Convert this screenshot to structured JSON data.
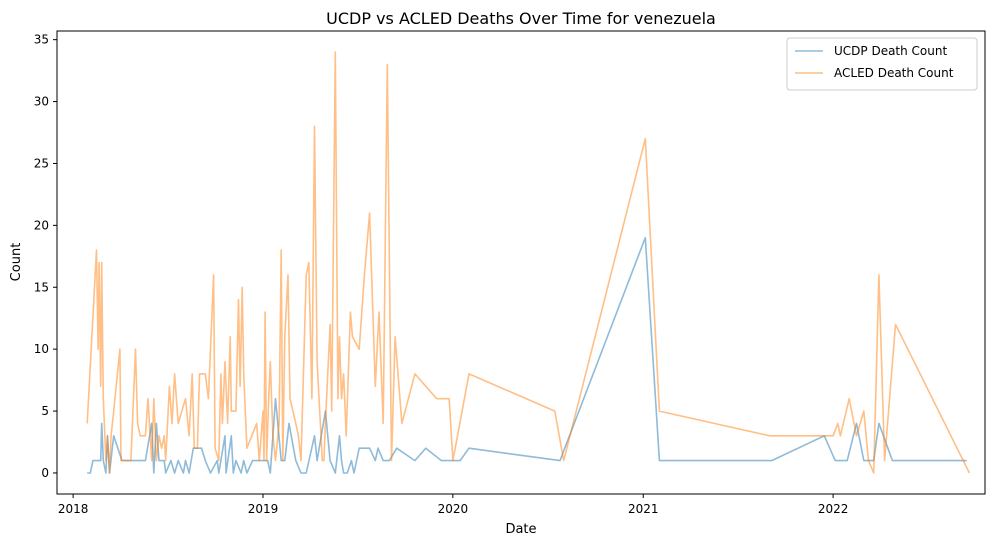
{
  "chart_data": {
    "type": "line",
    "title": "UCDP vs ACLED Deaths Over Time for venezuela",
    "xlabel": "Date",
    "ylabel": "Count",
    "xlim": [
      "2017-12-01",
      "2022-10-20"
    ],
    "ylim": [
      -1.7,
      35.7
    ],
    "x_ticks": [
      {
        "date": "2018-01-01",
        "label": "2018"
      },
      {
        "date": "2019-01-01",
        "label": "2019"
      },
      {
        "date": "2020-01-01",
        "label": "2020"
      },
      {
        "date": "2021-01-01",
        "label": "2021"
      },
      {
        "date": "2022-01-01",
        "label": "2022"
      }
    ],
    "y_ticks": [
      0,
      5,
      10,
      15,
      20,
      25,
      30,
      35
    ],
    "grid": false,
    "legend_position": "top-right",
    "series": [
      {
        "name": "UCDP Death Count",
        "color": "#1f77b4",
        "opacity": 0.5,
        "points": [
          [
            "2018-01-28",
            0
          ],
          [
            "2018-02-03",
            0
          ],
          [
            "2018-02-08",
            1
          ],
          [
            "2018-02-23",
            1
          ],
          [
            "2018-02-25",
            4
          ],
          [
            "2018-02-28",
            1
          ],
          [
            "2018-03-05",
            0
          ],
          [
            "2018-03-08",
            3
          ],
          [
            "2018-03-12",
            0
          ],
          [
            "2018-03-20",
            3
          ],
          [
            "2018-04-05",
            1
          ],
          [
            "2018-05-20",
            1
          ],
          [
            "2018-06-01",
            4
          ],
          [
            "2018-06-05",
            0
          ],
          [
            "2018-06-10",
            4
          ],
          [
            "2018-06-15",
            1
          ],
          [
            "2018-06-25",
            1
          ],
          [
            "2018-06-28",
            0
          ],
          [
            "2018-07-08",
            1
          ],
          [
            "2018-07-15",
            0
          ],
          [
            "2018-07-22",
            1
          ],
          [
            "2018-08-01",
            0
          ],
          [
            "2018-08-05",
            1
          ],
          [
            "2018-08-12",
            0
          ],
          [
            "2018-08-20",
            2
          ],
          [
            "2018-09-05",
            2
          ],
          [
            "2018-09-12",
            1
          ],
          [
            "2018-09-22",
            0
          ],
          [
            "2018-10-05",
            1
          ],
          [
            "2018-10-08",
            0
          ],
          [
            "2018-10-20",
            3
          ],
          [
            "2018-10-22",
            0
          ],
          [
            "2018-11-01",
            3
          ],
          [
            "2018-11-05",
            0
          ],
          [
            "2018-11-10",
            1
          ],
          [
            "2018-11-20",
            0
          ],
          [
            "2018-11-25",
            1
          ],
          [
            "2018-12-01",
            0
          ],
          [
            "2018-12-12",
            1
          ],
          [
            "2019-01-10",
            1
          ],
          [
            "2019-01-15",
            0
          ],
          [
            "2019-01-25",
            6
          ],
          [
            "2019-02-05",
            1
          ],
          [
            "2019-02-12",
            1
          ],
          [
            "2019-02-20",
            4
          ],
          [
            "2019-03-05",
            1
          ],
          [
            "2019-03-15",
            0
          ],
          [
            "2019-03-25",
            0
          ],
          [
            "2019-04-10",
            3
          ],
          [
            "2019-04-15",
            1
          ],
          [
            "2019-05-01",
            5
          ],
          [
            "2019-05-10",
            1
          ],
          [
            "2019-05-20",
            0
          ],
          [
            "2019-05-28",
            3
          ],
          [
            "2019-06-01",
            1
          ],
          [
            "2019-06-05",
            0
          ],
          [
            "2019-06-12",
            0
          ],
          [
            "2019-06-20",
            1
          ],
          [
            "2019-06-25",
            0
          ],
          [
            "2019-07-05",
            2
          ],
          [
            "2019-07-25",
            2
          ],
          [
            "2019-08-05",
            1
          ],
          [
            "2019-08-10",
            2
          ],
          [
            "2019-08-20",
            1
          ],
          [
            "2019-09-01",
            1
          ],
          [
            "2019-09-15",
            2
          ],
          [
            "2019-10-20",
            1
          ],
          [
            "2019-11-10",
            2
          ],
          [
            "2019-12-10",
            1
          ],
          [
            "2020-01-01",
            1
          ],
          [
            "2020-01-15",
            1
          ],
          [
            "2020-02-01",
            2
          ],
          [
            "2020-07-25",
            1
          ],
          [
            "2021-01-05",
            19
          ],
          [
            "2021-02-01",
            1
          ],
          [
            "2021-09-05",
            1
          ],
          [
            "2021-12-15",
            3
          ],
          [
            "2022-01-05",
            1
          ],
          [
            "2022-01-28",
            1
          ],
          [
            "2022-02-15",
            4
          ],
          [
            "2022-03-01",
            1
          ],
          [
            "2022-03-20",
            1
          ],
          [
            "2022-03-30",
            4
          ],
          [
            "2022-04-25",
            1
          ],
          [
            "2022-09-15",
            1
          ]
        ]
      },
      {
        "name": "ACLED Death Count",
        "color": "#ff7f0e",
        "opacity": 0.5,
        "points": [
          [
            "2018-01-28",
            4
          ],
          [
            "2018-02-15",
            18
          ],
          [
            "2018-02-18",
            10
          ],
          [
            "2018-02-20",
            17
          ],
          [
            "2018-02-23",
            7
          ],
          [
            "2018-02-25",
            17
          ],
          [
            "2018-02-28",
            6
          ],
          [
            "2018-03-05",
            1
          ],
          [
            "2018-03-08",
            3
          ],
          [
            "2018-03-12",
            0
          ],
          [
            "2018-03-15",
            3
          ],
          [
            "2018-03-20",
            5
          ],
          [
            "2018-04-01",
            10
          ],
          [
            "2018-04-03",
            1
          ],
          [
            "2018-04-15",
            1
          ],
          [
            "2018-04-22",
            1
          ],
          [
            "2018-05-01",
            10
          ],
          [
            "2018-05-05",
            4
          ],
          [
            "2018-05-10",
            3
          ],
          [
            "2018-05-20",
            3
          ],
          [
            "2018-05-25",
            6
          ],
          [
            "2018-06-01",
            1
          ],
          [
            "2018-06-05",
            6
          ],
          [
            "2018-06-10",
            1
          ],
          [
            "2018-06-15",
            3
          ],
          [
            "2018-06-20",
            2
          ],
          [
            "2018-06-25",
            3
          ],
          [
            "2018-06-28",
            1
          ],
          [
            "2018-07-05",
            7
          ],
          [
            "2018-07-10",
            4
          ],
          [
            "2018-07-15",
            8
          ],
          [
            "2018-07-22",
            4
          ],
          [
            "2018-08-05",
            6
          ],
          [
            "2018-08-12",
            3
          ],
          [
            "2018-08-18",
            8
          ],
          [
            "2018-08-22",
            2
          ],
          [
            "2018-08-28",
            2
          ],
          [
            "2018-09-01",
            8
          ],
          [
            "2018-09-12",
            8
          ],
          [
            "2018-09-18",
            6
          ],
          [
            "2018-09-28",
            16
          ],
          [
            "2018-10-01",
            2
          ],
          [
            "2018-10-08",
            1
          ],
          [
            "2018-10-12",
            8
          ],
          [
            "2018-10-15",
            4
          ],
          [
            "2018-10-20",
            9
          ],
          [
            "2018-10-25",
            4
          ],
          [
            "2018-10-30",
            11
          ],
          [
            "2018-11-01",
            5
          ],
          [
            "2018-11-10",
            5
          ],
          [
            "2018-11-15",
            14
          ],
          [
            "2018-11-18",
            7
          ],
          [
            "2018-11-22",
            15
          ],
          [
            "2018-11-25",
            8
          ],
          [
            "2018-12-01",
            2
          ],
          [
            "2018-12-20",
            4
          ],
          [
            "2018-12-25",
            1
          ],
          [
            "2019-01-01",
            5
          ],
          [
            "2019-01-03",
            1
          ],
          [
            "2019-01-05",
            13
          ],
          [
            "2019-01-08",
            1
          ],
          [
            "2019-01-12",
            6
          ],
          [
            "2019-01-15",
            9
          ],
          [
            "2019-01-20",
            3
          ],
          [
            "2019-01-25",
            1
          ],
          [
            "2019-02-01",
            4
          ],
          [
            "2019-02-05",
            18
          ],
          [
            "2019-02-08",
            1
          ],
          [
            "2019-02-12",
            11
          ],
          [
            "2019-02-18",
            16
          ],
          [
            "2019-02-22",
            6
          ],
          [
            "2019-03-05",
            4
          ],
          [
            "2019-03-10",
            3
          ],
          [
            "2019-03-15",
            1
          ],
          [
            "2019-03-25",
            16
          ],
          [
            "2019-03-30",
            17
          ],
          [
            "2019-04-05",
            6
          ],
          [
            "2019-04-10",
            28
          ],
          [
            "2019-04-15",
            9
          ],
          [
            "2019-04-25",
            1
          ],
          [
            "2019-04-28",
            1
          ],
          [
            "2019-05-01",
            4
          ],
          [
            "2019-05-10",
            12
          ],
          [
            "2019-05-13",
            5
          ],
          [
            "2019-05-20",
            34
          ],
          [
            "2019-05-25",
            6
          ],
          [
            "2019-05-28",
            11
          ],
          [
            "2019-06-01",
            6
          ],
          [
            "2019-06-05",
            8
          ],
          [
            "2019-06-10",
            3
          ],
          [
            "2019-06-18",
            13
          ],
          [
            "2019-06-22",
            11
          ],
          [
            "2019-07-05",
            10
          ],
          [
            "2019-07-15",
            16
          ],
          [
            "2019-07-25",
            21
          ],
          [
            "2019-08-05",
            7
          ],
          [
            "2019-08-12",
            13
          ],
          [
            "2019-08-20",
            4
          ],
          [
            "2019-08-28",
            33
          ],
          [
            "2019-09-05",
            1
          ],
          [
            "2019-09-12",
            11
          ],
          [
            "2019-09-25",
            4
          ],
          [
            "2019-10-20",
            8
          ],
          [
            "2019-11-10",
            7
          ],
          [
            "2019-12-01",
            6
          ],
          [
            "2019-12-25",
            6
          ],
          [
            "2020-01-01",
            1
          ],
          [
            "2020-02-01",
            8
          ],
          [
            "2020-07-15",
            5
          ],
          [
            "2020-08-01",
            1
          ],
          [
            "2021-01-05",
            27
          ],
          [
            "2021-02-01",
            5
          ],
          [
            "2021-09-01",
            3
          ],
          [
            "2021-12-15",
            3
          ],
          [
            "2022-01-01",
            3
          ],
          [
            "2022-01-10",
            4
          ],
          [
            "2022-01-15",
            3
          ],
          [
            "2022-02-01",
            6
          ],
          [
            "2022-02-15",
            3
          ],
          [
            "2022-03-01",
            5
          ],
          [
            "2022-03-10",
            1
          ],
          [
            "2022-03-20",
            0
          ],
          [
            "2022-03-30",
            16
          ],
          [
            "2022-04-10",
            1
          ],
          [
            "2022-05-01",
            12
          ],
          [
            "2022-09-20",
            0
          ]
        ]
      }
    ]
  }
}
